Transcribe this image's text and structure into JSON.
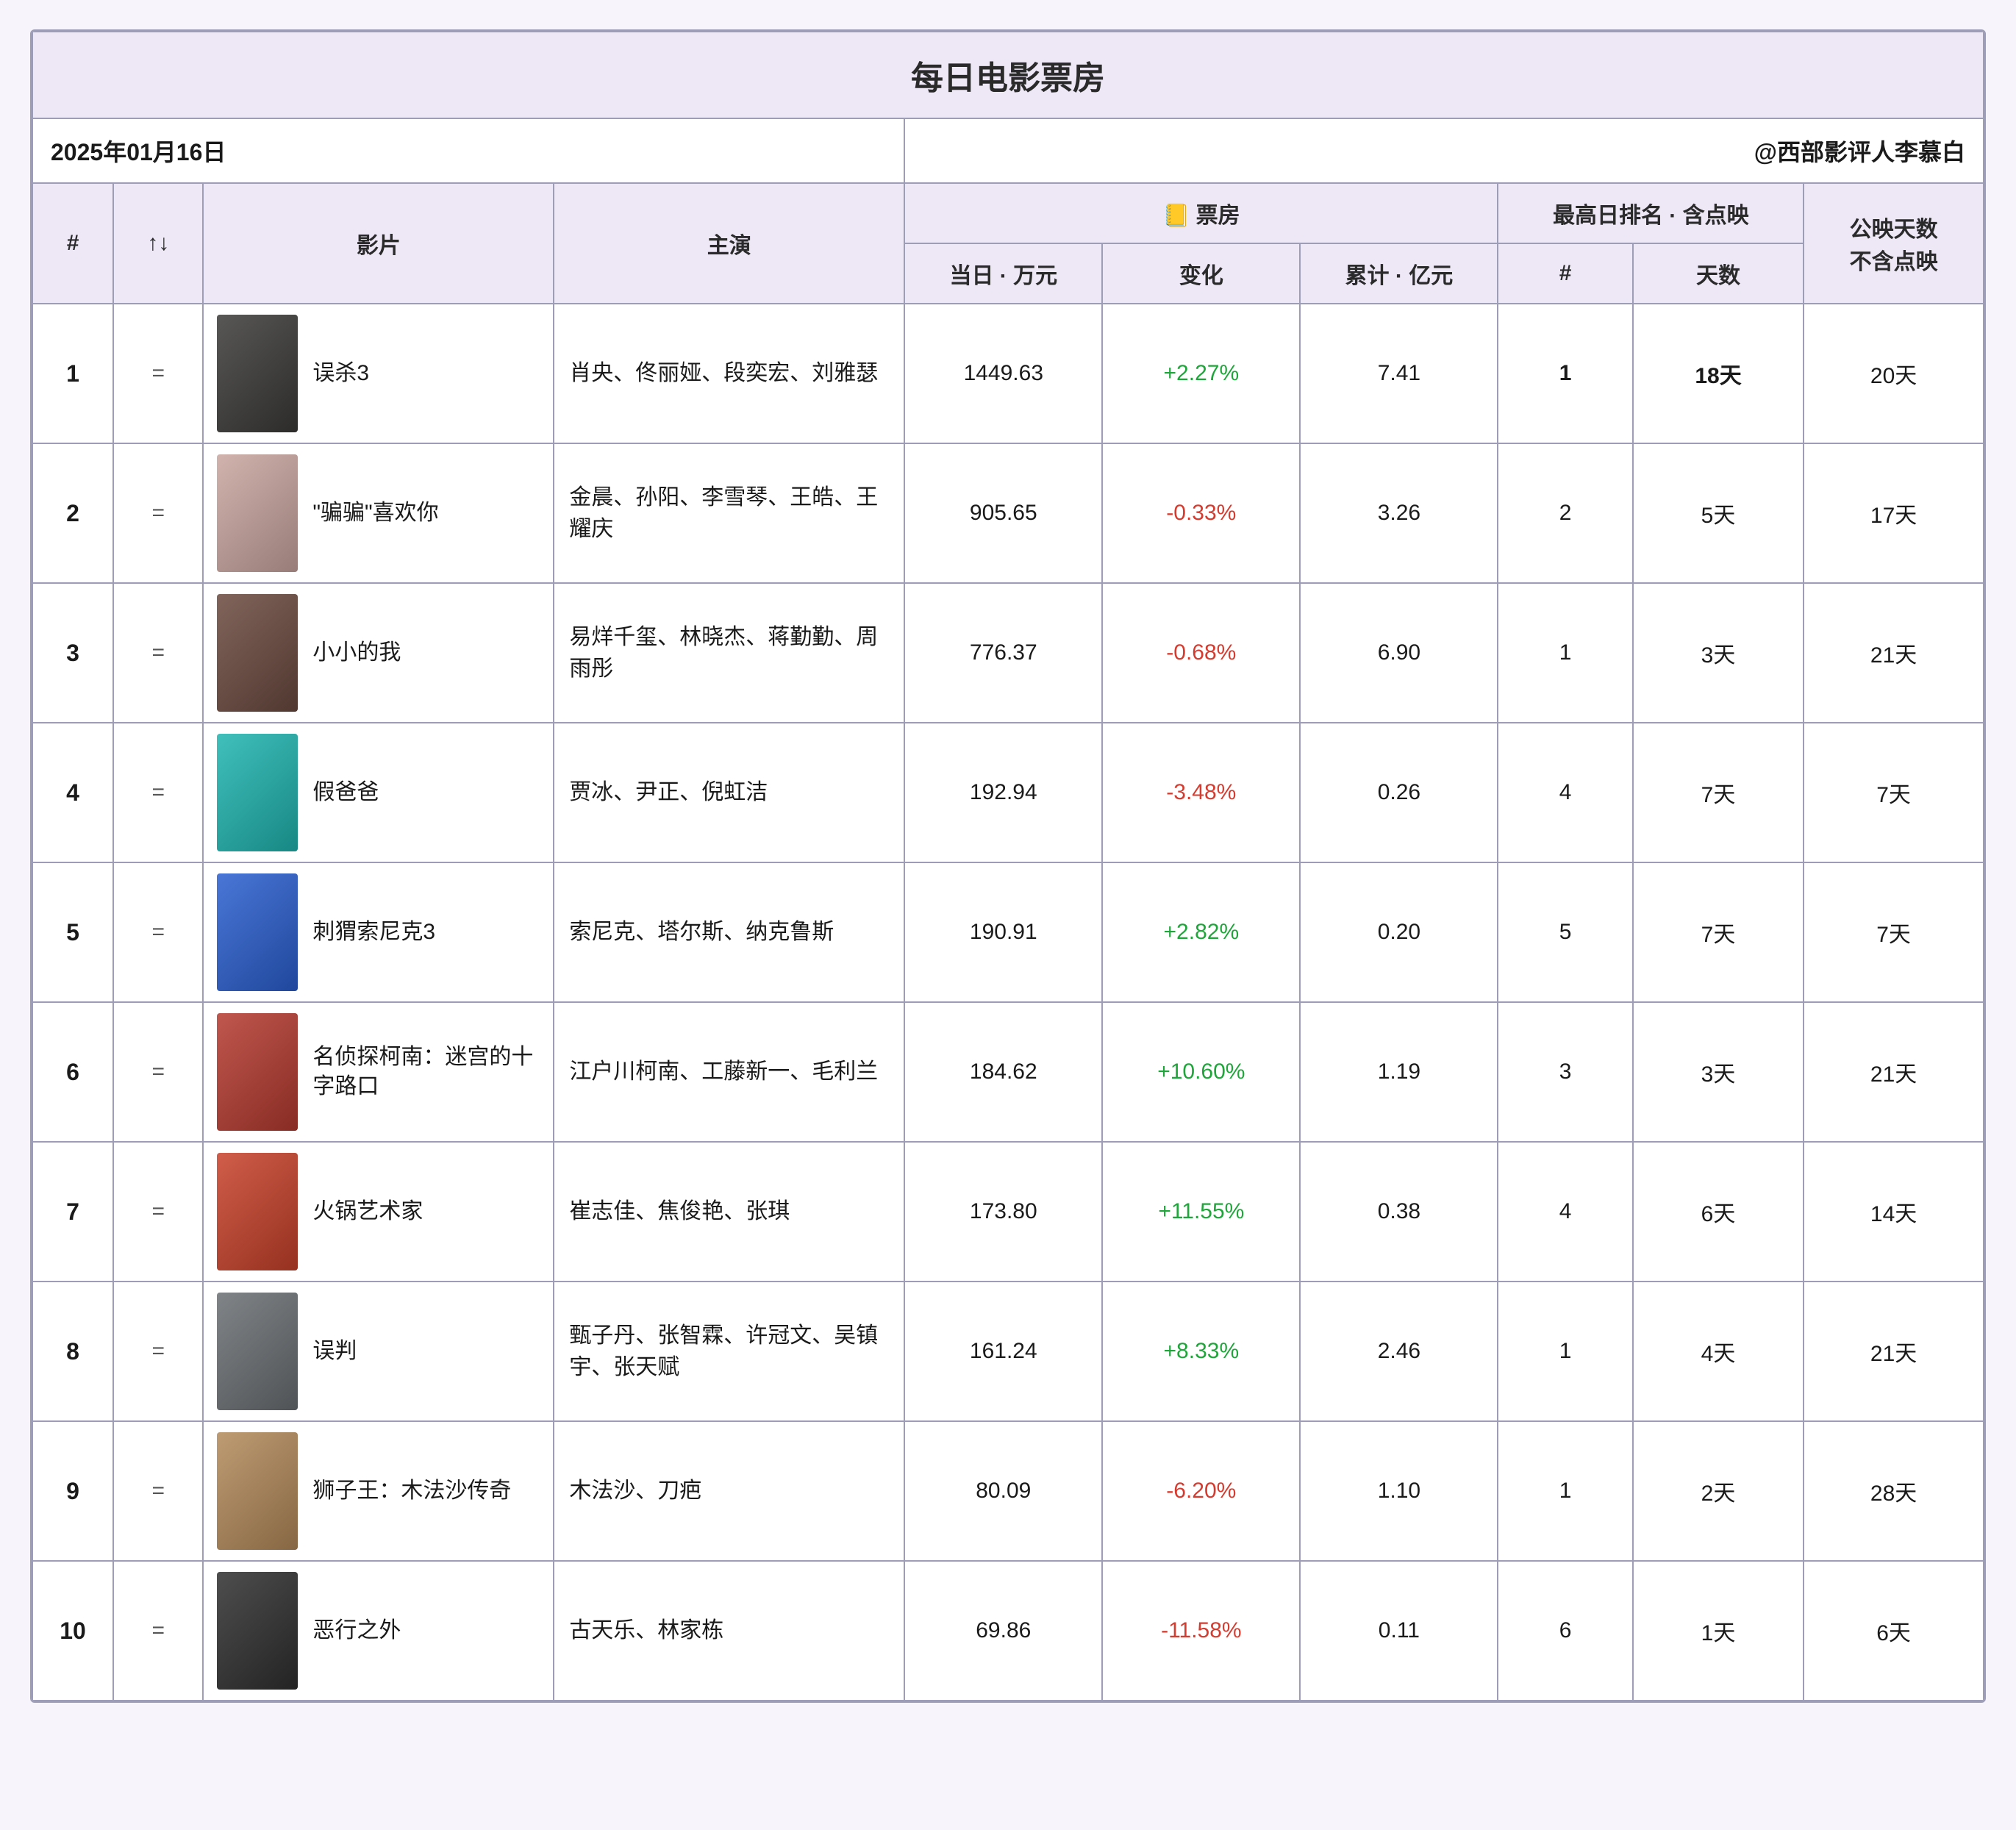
{
  "title": "每日电影票房",
  "date": "2025年01月16日",
  "author": "@西部影评人李慕白",
  "columns": {
    "rank": "#",
    "trend": "↑↓",
    "movie": "影片",
    "cast": "主演",
    "box_group": "📒 票房",
    "daily": "当日 · 万元",
    "change": "变化",
    "cumulative": "累计 · 亿元",
    "peak_group": "最高日排名 · 含点映",
    "peak_rank": "#",
    "peak_days": "天数",
    "release_days": "公映天数\n不含点映"
  },
  "colors": {
    "header_bg": "#ede7f6",
    "border": "#9e9db7",
    "positive": "#1fa63a",
    "negative": "#d63b2f",
    "page_bg": "#f7f5fb"
  },
  "posters": [
    {
      "bg": "#3b3a38"
    },
    {
      "bg": "#caa6a0"
    },
    {
      "bg": "#6b4a3f"
    },
    {
      "bg": "#1fb5b0"
    },
    {
      "bg": "#2a5fd0"
    },
    {
      "bg": "#b53a2f"
    },
    {
      "bg": "#c8412a"
    },
    {
      "bg": "#6a6f73"
    },
    {
      "bg": "#b38a5a"
    },
    {
      "bg": "#2f2f2f"
    }
  ],
  "rows": [
    {
      "rank": "1",
      "trend": "=",
      "title": "误杀3",
      "cast": "肖央、佟丽娅、段奕宏、刘雅瑟",
      "daily": "1449.63",
      "change": "+2.27%",
      "change_dir": "pos",
      "cumulative": "7.41",
      "peak_rank": "1",
      "peak_rank_bold": true,
      "peak_days": "18天",
      "peak_days_bold": true,
      "release_days": "20天"
    },
    {
      "rank": "2",
      "trend": "=",
      "title": "\"骗骗\"喜欢你",
      "cast": "金晨、孙阳、李雪琴、王皓、王耀庆",
      "daily": "905.65",
      "change": "-0.33%",
      "change_dir": "neg",
      "cumulative": "3.26",
      "peak_rank": "2",
      "peak_days": "5天",
      "release_days": "17天"
    },
    {
      "rank": "3",
      "trend": "=",
      "title": "小小的我",
      "cast": "易烊千玺、林晓杰、蒋勤勤、周雨彤",
      "daily": "776.37",
      "change": "-0.68%",
      "change_dir": "neg",
      "cumulative": "6.90",
      "peak_rank": "1",
      "peak_days": "3天",
      "release_days": "21天"
    },
    {
      "rank": "4",
      "trend": "=",
      "title": "假爸爸",
      "cast": "贾冰、尹正、倪虹洁",
      "daily": "192.94",
      "change": "-3.48%",
      "change_dir": "neg",
      "cumulative": "0.26",
      "peak_rank": "4",
      "peak_days": "7天",
      "release_days": "7天"
    },
    {
      "rank": "5",
      "trend": "=",
      "title": "刺猬索尼克3",
      "cast": "索尼克、塔尔斯、纳克鲁斯",
      "daily": "190.91",
      "change": "+2.82%",
      "change_dir": "pos",
      "cumulative": "0.20",
      "peak_rank": "5",
      "peak_days": "7天",
      "release_days": "7天"
    },
    {
      "rank": "6",
      "trend": "=",
      "title": "名侦探柯南：迷宫的十字路口",
      "cast": "江户川柯南、工藤新一、毛利兰",
      "daily": "184.62",
      "change": "+10.60%",
      "change_dir": "pos",
      "cumulative": "1.19",
      "peak_rank": "3",
      "peak_days": "3天",
      "release_days": "21天"
    },
    {
      "rank": "7",
      "trend": "=",
      "title": "火锅艺术家",
      "cast": "崔志佳、焦俊艳、张琪",
      "daily": "173.80",
      "change": "+11.55%",
      "change_dir": "pos",
      "cumulative": "0.38",
      "peak_rank": "4",
      "peak_days": "6天",
      "release_days": "14天"
    },
    {
      "rank": "8",
      "trend": "=",
      "title": "误判",
      "cast": "甄子丹、张智霖、许冠文、吴镇宇、张天赋",
      "daily": "161.24",
      "change": "+8.33%",
      "change_dir": "pos",
      "cumulative": "2.46",
      "peak_rank": "1",
      "peak_days": "4天",
      "release_days": "21天"
    },
    {
      "rank": "9",
      "trend": "=",
      "title": "狮子王：木法沙传奇",
      "cast": "木法沙、刀疤",
      "daily": "80.09",
      "change": "-6.20%",
      "change_dir": "neg",
      "cumulative": "1.10",
      "peak_rank": "1",
      "peak_days": "2天",
      "release_days": "28天"
    },
    {
      "rank": "10",
      "trend": "=",
      "title": "恶行之外",
      "cast": "古天乐、林家栋",
      "daily": "69.86",
      "change": "-11.58%",
      "change_dir": "neg",
      "cumulative": "0.11",
      "peak_rank": "6",
      "peak_days": "1天",
      "release_days": "6天"
    }
  ]
}
